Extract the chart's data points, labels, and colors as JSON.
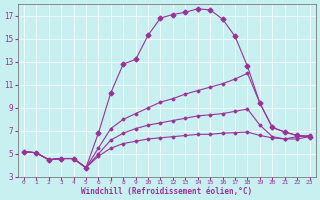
{
  "xlabel": "Windchill (Refroidissement éolien,°C)",
  "bg_color": "#c8f0f0",
  "line_color": "#993399",
  "xlim": [
    -0.5,
    23.5
  ],
  "ylim": [
    3,
    18
  ],
  "xticks": [
    0,
    1,
    2,
    3,
    4,
    5,
    6,
    7,
    8,
    9,
    10,
    11,
    12,
    13,
    14,
    15,
    16,
    17,
    18,
    19,
    20,
    21,
    22,
    23
  ],
  "yticks": [
    3,
    5,
    7,
    9,
    11,
    13,
    15,
    17
  ],
  "lines": [
    {
      "x": [
        0,
        1,
        2,
        3,
        4,
        5,
        6,
        7,
        8,
        9,
        10,
        11,
        12,
        13,
        14,
        15,
        16,
        17,
        18,
        19,
        20,
        21,
        22,
        23
      ],
      "y": [
        5.2,
        5.1,
        4.5,
        4.6,
        4.6,
        3.8,
        6.8,
        10.3,
        12.8,
        13.2,
        15.3,
        16.8,
        17.1,
        17.3,
        17.6,
        17.5,
        16.7,
        15.2,
        12.6,
        null,
        null,
        null,
        null,
        null
      ],
      "has_markers": true
    },
    {
      "x": [
        0,
        1,
        2,
        3,
        4,
        5,
        6,
        7,
        8,
        9,
        10,
        11,
        12,
        13,
        14,
        15,
        16,
        17,
        18,
        19,
        20,
        21,
        22,
        23
      ],
      "y": [
        5.2,
        5.1,
        4.5,
        4.6,
        4.6,
        3.8,
        5.5,
        7.2,
        8.0,
        8.5,
        9.0,
        9.5,
        9.8,
        10.2,
        10.5,
        10.8,
        11.1,
        11.5,
        12.0,
        9.4,
        7.3,
        6.9,
        6.6,
        6.5
      ],
      "has_markers": false
    },
    {
      "x": [
        0,
        1,
        2,
        3,
        4,
        5,
        6,
        7,
        8,
        9,
        10,
        11,
        12,
        13,
        14,
        15,
        16,
        17,
        18,
        19,
        20,
        21,
        22,
        23
      ],
      "y": [
        5.2,
        5.1,
        4.5,
        4.6,
        4.6,
        3.8,
        5.0,
        6.2,
        6.8,
        7.2,
        7.5,
        7.7,
        7.9,
        8.1,
        8.3,
        8.4,
        8.5,
        8.7,
        8.9,
        7.5,
        6.5,
        6.3,
        6.3,
        6.5
      ],
      "has_markers": false
    },
    {
      "x": [
        0,
        1,
        2,
        3,
        4,
        5,
        6,
        7,
        8,
        9,
        10,
        11,
        12,
        13,
        14,
        15,
        16,
        17,
        18,
        19,
        20,
        21,
        22,
        23
      ],
      "y": [
        5.2,
        5.1,
        4.5,
        4.6,
        4.6,
        3.8,
        4.8,
        5.5,
        5.9,
        6.1,
        6.3,
        6.4,
        6.5,
        6.6,
        6.7,
        6.7,
        6.8,
        6.85,
        6.9,
        6.6,
        6.4,
        6.3,
        6.5,
        6.6
      ],
      "has_markers": false
    }
  ],
  "line1_x": [
    0,
    1,
    2,
    3,
    4,
    5,
    6,
    7,
    8,
    9,
    10,
    11,
    12,
    13,
    14,
    15,
    16,
    17,
    18,
    19,
    20,
    21,
    22,
    23
  ],
  "line1_y": [
    5.2,
    5.1,
    4.5,
    4.6,
    4.6,
    3.8,
    6.8,
    10.3,
    12.8,
    13.2,
    15.3,
    16.8,
    17.1,
    17.3,
    17.6,
    17.5,
    16.7,
    15.2,
    12.6,
    9.4,
    7.3,
    6.9,
    6.6,
    6.5
  ]
}
